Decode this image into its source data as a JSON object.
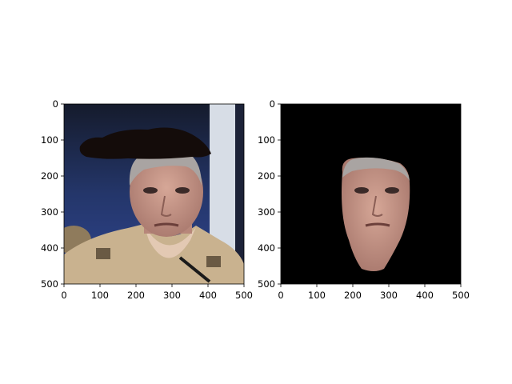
{
  "figure": {
    "background": "#ffffff",
    "panels": [
      {
        "id": "panel-left",
        "description_free": true,
        "xticks": [
          "0",
          "100",
          "200",
          "300",
          "400",
          "500"
        ],
        "yticks": [
          "0",
          "100",
          "200",
          "300",
          "400",
          "500"
        ],
        "content": "photo-with-dark-patch"
      },
      {
        "id": "panel-right",
        "xticks": [
          "0",
          "100",
          "200",
          "300",
          "400",
          "500"
        ],
        "yticks": [
          "0",
          "100",
          "200",
          "300",
          "400",
          "500"
        ],
        "content": "masked-face-on-black"
      }
    ]
  },
  "colors": {
    "left_bg_dark": "#1a2238",
    "left_bg_blue": "#2c3f7a",
    "pillar": "#d7dde6",
    "patch": "#140c0a",
    "skin": "#c8988a",
    "hair": "#a9a4a2",
    "uniform": "#c9b28f",
    "mask_bg": "#000000"
  }
}
